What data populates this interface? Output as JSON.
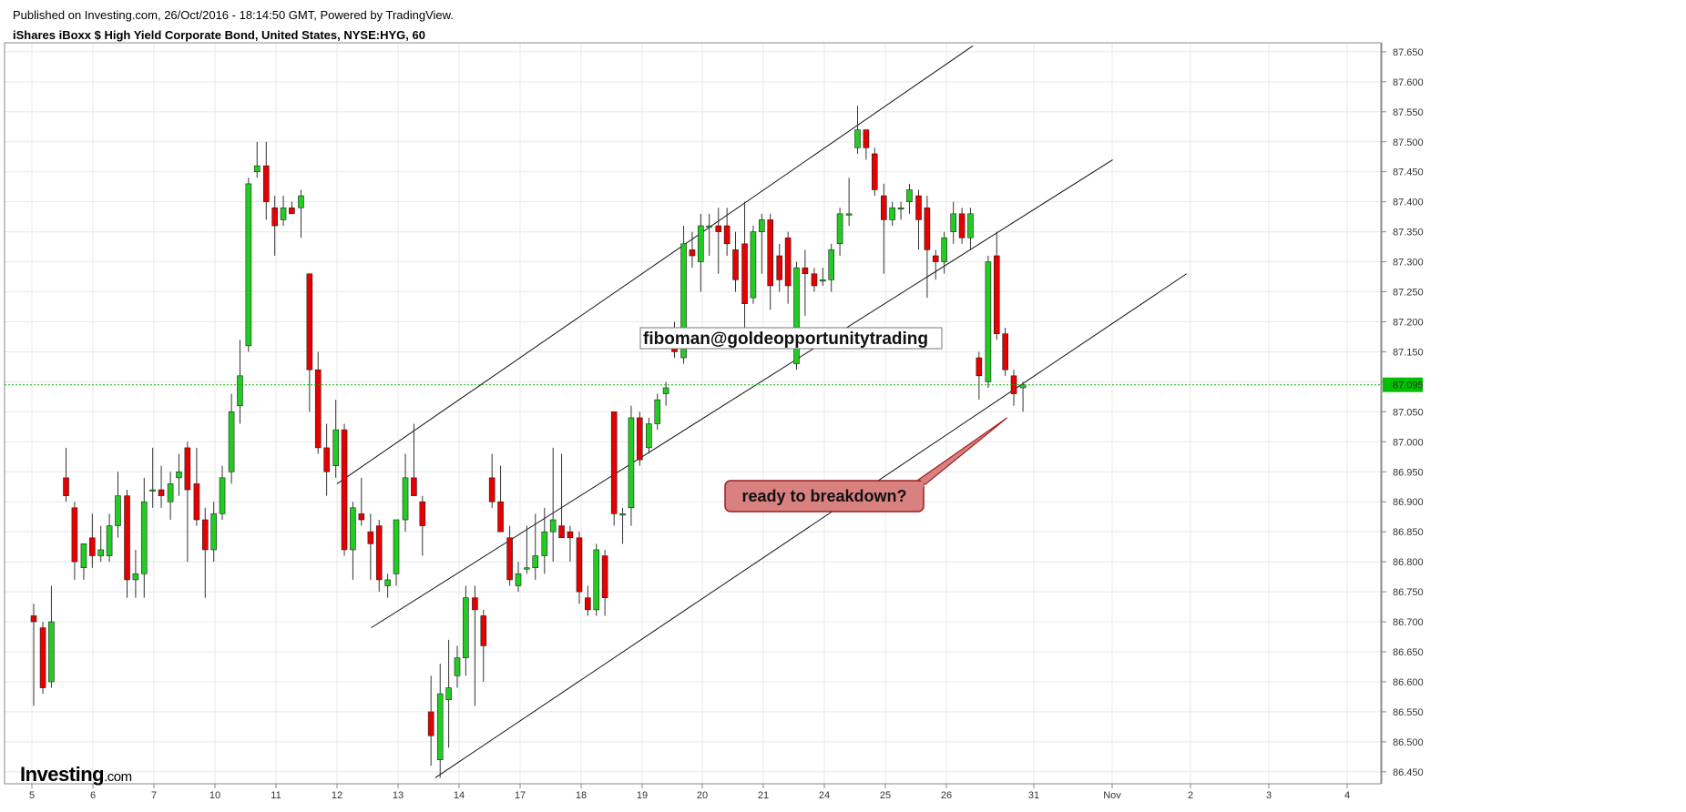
{
  "header": {
    "published": "Published on Investing.com, 26/Oct/2016 - 18:14:50 GMT, Powered by TradingView.",
    "symbol": "iShares iBoxx $ High Yield Corporate Bond, United States, NYSE:HYG, 60"
  },
  "logo": {
    "brand": "Investing",
    "suffix": ".com"
  },
  "colors": {
    "up": "#22cc22",
    "down": "#e60000",
    "grid": "#e8e8e8",
    "current_price_line": "#00bb00",
    "callout_fill": "#d98080",
    "callout_border": "#9a1f1f"
  },
  "chart_data": {
    "type": "candlestick",
    "interval": "60",
    "x_ticks": [
      "5",
      "6",
      "7",
      "10",
      "11",
      "12",
      "13",
      "14",
      "17",
      "18",
      "19",
      "20",
      "21",
      "24",
      "25",
      "26",
      "31",
      "Nov",
      "2",
      "3",
      "4"
    ],
    "y_ticks": [
      "87.650",
      "87.600",
      "87.550",
      "87.500",
      "87.450",
      "87.400",
      "87.350",
      "87.300",
      "87.250",
      "87.200",
      "87.150",
      "87.100",
      "87.050",
      "87.000",
      "86.950",
      "86.900",
      "86.850",
      "86.800",
      "86.750",
      "86.700",
      "86.650",
      "86.600",
      "86.550",
      "86.500",
      "86.450"
    ],
    "ylim": [
      86.43,
      87.665
    ],
    "current_price": "87.095",
    "candles": [
      {
        "x": 0.03,
        "o": 86.71,
        "h": 86.73,
        "l": 86.56,
        "c": 86.7
      },
      {
        "x": 0.18,
        "o": 86.69,
        "h": 86.7,
        "l": 86.58,
        "c": 86.59
      },
      {
        "x": 0.32,
        "o": 86.6,
        "h": 86.76,
        "l": 86.59,
        "c": 86.7
      },
      {
        "x": 0.56,
        "o": 86.94,
        "h": 86.99,
        "l": 86.9,
        "c": 86.91
      },
      {
        "x": 0.7,
        "o": 86.89,
        "h": 86.9,
        "l": 86.77,
        "c": 86.8
      },
      {
        "x": 0.85,
        "o": 86.79,
        "h": 86.83,
        "l": 86.77,
        "c": 86.83
      },
      {
        "x": 0.99,
        "o": 86.84,
        "h": 86.88,
        "l": 86.79,
        "c": 86.81
      },
      {
        "x": 1.13,
        "o": 86.81,
        "h": 86.86,
        "l": 86.8,
        "c": 86.82
      },
      {
        "x": 1.27,
        "o": 86.81,
        "h": 86.88,
        "l": 86.8,
        "c": 86.86
      },
      {
        "x": 1.41,
        "o": 86.86,
        "h": 86.95,
        "l": 86.84,
        "c": 86.91
      },
      {
        "x": 1.56,
        "o": 86.91,
        "h": 86.92,
        "l": 86.74,
        "c": 86.77
      },
      {
        "x": 1.7,
        "o": 86.77,
        "h": 86.82,
        "l": 86.74,
        "c": 86.78
      },
      {
        "x": 1.84,
        "o": 86.78,
        "h": 86.94,
        "l": 86.74,
        "c": 86.9
      },
      {
        "x": 1.98,
        "o": 86.92,
        "h": 86.99,
        "l": 86.89,
        "c": 86.92
      },
      {
        "x": 2.12,
        "o": 86.92,
        "h": 86.96,
        "l": 86.89,
        "c": 86.91
      },
      {
        "x": 2.27,
        "o": 86.9,
        "h": 86.95,
        "l": 86.87,
        "c": 86.93
      },
      {
        "x": 2.41,
        "o": 86.94,
        "h": 86.98,
        "l": 86.91,
        "c": 86.95
      },
      {
        "x": 2.55,
        "o": 86.99,
        "h": 87.0,
        "l": 86.8,
        "c": 86.92
      },
      {
        "x": 2.7,
        "o": 86.93,
        "h": 86.99,
        "l": 86.86,
        "c": 86.87
      },
      {
        "x": 2.84,
        "o": 86.87,
        "h": 86.89,
        "l": 86.74,
        "c": 86.82
      },
      {
        "x": 2.98,
        "o": 86.82,
        "h": 86.9,
        "l": 86.8,
        "c": 86.88
      },
      {
        "x": 3.12,
        "o": 86.88,
        "h": 86.96,
        "l": 86.87,
        "c": 86.94
      },
      {
        "x": 3.27,
        "o": 86.95,
        "h": 87.08,
        "l": 86.93,
        "c": 87.05
      },
      {
        "x": 3.41,
        "o": 87.06,
        "h": 87.17,
        "l": 87.03,
        "c": 87.11
      },
      {
        "x": 3.55,
        "o": 87.16,
        "h": 87.44,
        "l": 87.15,
        "c": 87.43
      },
      {
        "x": 3.69,
        "o": 87.45,
        "h": 87.5,
        "l": 87.44,
        "c": 87.46
      },
      {
        "x": 3.84,
        "o": 87.46,
        "h": 87.5,
        "l": 87.37,
        "c": 87.4
      },
      {
        "x": 3.98,
        "o": 87.39,
        "h": 87.41,
        "l": 87.31,
        "c": 87.36
      },
      {
        "x": 4.12,
        "o": 87.37,
        "h": 87.41,
        "l": 87.36,
        "c": 87.39
      },
      {
        "x": 4.26,
        "o": 87.39,
        "h": 87.4,
        "l": 87.38,
        "c": 87.38
      },
      {
        "x": 4.41,
        "o": 87.39,
        "h": 87.42,
        "l": 87.34,
        "c": 87.41
      },
      {
        "x": 4.55,
        "o": 87.28,
        "h": 87.28,
        "l": 87.05,
        "c": 87.12
      },
      {
        "x": 4.69,
        "o": 87.12,
        "h": 87.15,
        "l": 86.98,
        "c": 86.99
      },
      {
        "x": 4.83,
        "o": 86.99,
        "h": 87.03,
        "l": 86.91,
        "c": 86.95
      },
      {
        "x": 4.98,
        "o": 86.96,
        "h": 87.07,
        "l": 86.94,
        "c": 87.02
      },
      {
        "x": 5.12,
        "o": 87.02,
        "h": 87.03,
        "l": 86.81,
        "c": 86.82
      },
      {
        "x": 5.26,
        "o": 86.82,
        "h": 86.9,
        "l": 86.77,
        "c": 86.89
      },
      {
        "x": 5.4,
        "o": 86.88,
        "h": 86.94,
        "l": 86.86,
        "c": 86.87
      },
      {
        "x": 5.55,
        "o": 86.85,
        "h": 86.88,
        "l": 86.77,
        "c": 86.83
      },
      {
        "x": 5.69,
        "o": 86.86,
        "h": 86.87,
        "l": 86.75,
        "c": 86.77
      },
      {
        "x": 5.83,
        "o": 86.76,
        "h": 86.78,
        "l": 86.74,
        "c": 86.77
      },
      {
        "x": 5.97,
        "o": 86.78,
        "h": 86.87,
        "l": 86.76,
        "c": 86.87
      },
      {
        "x": 6.12,
        "o": 86.87,
        "h": 86.98,
        "l": 86.85,
        "c": 86.94
      },
      {
        "x": 6.26,
        "o": 86.94,
        "h": 87.03,
        "l": 86.92,
        "c": 86.91
      },
      {
        "x": 6.4,
        "o": 86.9,
        "h": 86.91,
        "l": 86.81,
        "c": 86.86
      },
      {
        "x": 6.54,
        "o": 86.55,
        "h": 86.61,
        "l": 86.46,
        "c": 86.51
      },
      {
        "x": 6.69,
        "o": 86.47,
        "h": 86.63,
        "l": 86.44,
        "c": 86.58
      },
      {
        "x": 6.83,
        "o": 86.57,
        "h": 86.67,
        "l": 86.49,
        "c": 86.59
      },
      {
        "x": 6.97,
        "o": 86.61,
        "h": 86.66,
        "l": 86.59,
        "c": 86.64
      },
      {
        "x": 7.11,
        "o": 86.64,
        "h": 86.76,
        "l": 86.61,
        "c": 86.74
      },
      {
        "x": 7.26,
        "o": 86.74,
        "h": 86.76,
        "l": 86.56,
        "c": 86.72
      },
      {
        "x": 7.4,
        "o": 86.71,
        "h": 86.72,
        "l": 86.6,
        "c": 86.66
      },
      {
        "x": 7.54,
        "o": 86.94,
        "h": 86.98,
        "l": 86.89,
        "c": 86.9
      },
      {
        "x": 7.68,
        "o": 86.9,
        "h": 86.96,
        "l": 86.85,
        "c": 86.85
      },
      {
        "x": 7.83,
        "o": 86.84,
        "h": 86.86,
        "l": 86.76,
        "c": 86.77
      },
      {
        "x": 7.97,
        "o": 86.76,
        "h": 86.8,
        "l": 86.75,
        "c": 86.78
      },
      {
        "x": 8.11,
        "o": 86.79,
        "h": 86.86,
        "l": 86.78,
        "c": 86.79
      },
      {
        "x": 8.25,
        "o": 86.79,
        "h": 86.88,
        "l": 86.77,
        "c": 86.81
      },
      {
        "x": 8.4,
        "o": 86.81,
        "h": 86.89,
        "l": 86.78,
        "c": 86.85
      },
      {
        "x": 8.54,
        "o": 86.85,
        "h": 86.99,
        "l": 86.8,
        "c": 86.87
      },
      {
        "x": 8.68,
        "o": 86.86,
        "h": 86.98,
        "l": 86.84,
        "c": 86.84
      },
      {
        "x": 8.82,
        "o": 86.85,
        "h": 86.86,
        "l": 86.8,
        "c": 86.84
      },
      {
        "x": 8.97,
        "o": 86.84,
        "h": 86.85,
        "l": 86.73,
        "c": 86.75
      },
      {
        "x": 9.11,
        "o": 86.74,
        "h": 86.76,
        "l": 86.71,
        "c": 86.72
      },
      {
        "x": 9.25,
        "o": 86.72,
        "h": 86.83,
        "l": 86.71,
        "c": 86.82
      },
      {
        "x": 9.39,
        "o": 86.81,
        "h": 86.82,
        "l": 86.71,
        "c": 86.74
      },
      {
        "x": 9.54,
        "o": 87.05,
        "h": 87.05,
        "l": 86.86,
        "c": 86.88
      },
      {
        "x": 9.68,
        "o": 86.88,
        "h": 86.89,
        "l": 86.83,
        "c": 86.88
      },
      {
        "x": 9.82,
        "o": 86.89,
        "h": 87.06,
        "l": 86.86,
        "c": 87.04
      },
      {
        "x": 9.96,
        "o": 87.04,
        "h": 87.05,
        "l": 86.96,
        "c": 86.97
      },
      {
        "x": 10.11,
        "o": 86.99,
        "h": 87.04,
        "l": 86.98,
        "c": 87.03
      },
      {
        "x": 10.25,
        "o": 87.03,
        "h": 87.08,
        "l": 87.02,
        "c": 87.07
      },
      {
        "x": 10.39,
        "o": 87.08,
        "h": 87.1,
        "l": 87.06,
        "c": 87.09
      },
      {
        "x": 10.53,
        "o": 87.17,
        "h": 87.2,
        "l": 87.14,
        "c": 87.15
      },
      {
        "x": 10.68,
        "o": 87.14,
        "h": 87.36,
        "l": 87.13,
        "c": 87.33
      },
      {
        "x": 10.82,
        "o": 87.32,
        "h": 87.35,
        "l": 87.29,
        "c": 87.31
      },
      {
        "x": 10.96,
        "o": 87.3,
        "h": 87.38,
        "l": 87.25,
        "c": 87.36
      },
      {
        "x": 11.1,
        "o": 87.36,
        "h": 87.38,
        "l": 87.31,
        "c": 87.36
      },
      {
        "x": 11.25,
        "o": 87.36,
        "h": 87.39,
        "l": 87.28,
        "c": 87.35
      },
      {
        "x": 11.39,
        "o": 87.36,
        "h": 87.39,
        "l": 87.31,
        "c": 87.33
      },
      {
        "x": 11.53,
        "o": 87.32,
        "h": 87.35,
        "l": 87.25,
        "c": 87.27
      },
      {
        "x": 11.68,
        "o": 87.33,
        "h": 87.4,
        "l": 87.18,
        "c": 87.23
      },
      {
        "x": 11.82,
        "o": 87.24,
        "h": 87.36,
        "l": 87.23,
        "c": 87.35
      },
      {
        "x": 11.96,
        "o": 87.35,
        "h": 87.38,
        "l": 87.28,
        "c": 87.37
      },
      {
        "x": 12.1,
        "o": 87.37,
        "h": 87.38,
        "l": 87.22,
        "c": 87.26
      },
      {
        "x": 12.25,
        "o": 87.31,
        "h": 87.33,
        "l": 87.25,
        "c": 87.27
      },
      {
        "x": 12.39,
        "o": 87.34,
        "h": 87.35,
        "l": 87.23,
        "c": 87.26
      },
      {
        "x": 12.53,
        "o": 87.13,
        "h": 87.3,
        "l": 87.12,
        "c": 87.29
      },
      {
        "x": 12.67,
        "o": 87.29,
        "h": 87.32,
        "l": 87.21,
        "c": 87.28
      },
      {
        "x": 12.82,
        "o": 87.28,
        "h": 87.29,
        "l": 87.25,
        "c": 87.26
      },
      {
        "x": 12.96,
        "o": 87.27,
        "h": 87.29,
        "l": 87.26,
        "c": 87.27
      },
      {
        "x": 13.1,
        "o": 87.27,
        "h": 87.33,
        "l": 87.25,
        "c": 87.32
      },
      {
        "x": 13.24,
        "o": 87.33,
        "h": 87.39,
        "l": 87.31,
        "c": 87.38
      },
      {
        "x": 13.39,
        "o": 87.38,
        "h": 87.44,
        "l": 87.36,
        "c": 87.38
      },
      {
        "x": 13.53,
        "o": 87.49,
        "h": 87.56,
        "l": 87.48,
        "c": 87.52
      },
      {
        "x": 13.67,
        "o": 87.52,
        "h": 87.52,
        "l": 87.47,
        "c": 87.49
      },
      {
        "x": 13.81,
        "o": 87.48,
        "h": 87.49,
        "l": 87.41,
        "c": 87.42
      },
      {
        "x": 13.96,
        "o": 87.41,
        "h": 87.43,
        "l": 87.28,
        "c": 87.37
      },
      {
        "x": 14.1,
        "o": 87.37,
        "h": 87.4,
        "l": 87.36,
        "c": 87.39
      },
      {
        "x": 14.24,
        "o": 87.39,
        "h": 87.4,
        "l": 87.37,
        "c": 87.39
      },
      {
        "x": 14.38,
        "o": 87.4,
        "h": 87.43,
        "l": 87.38,
        "c": 87.42
      },
      {
        "x": 14.53,
        "o": 87.41,
        "h": 87.42,
        "l": 87.32,
        "c": 87.37
      },
      {
        "x": 14.67,
        "o": 87.39,
        "h": 87.41,
        "l": 87.24,
        "c": 87.32
      },
      {
        "x": 14.81,
        "o": 87.31,
        "h": 87.32,
        "l": 87.27,
        "c": 87.3
      },
      {
        "x": 14.95,
        "o": 87.3,
        "h": 87.35,
        "l": 87.28,
        "c": 87.34
      },
      {
        "x": 15.1,
        "o": 87.35,
        "h": 87.4,
        "l": 87.33,
        "c": 87.38
      },
      {
        "x": 15.24,
        "o": 87.38,
        "h": 87.39,
        "l": 87.33,
        "c": 87.34
      },
      {
        "x": 15.38,
        "o": 87.34,
        "h": 87.39,
        "l": 87.32,
        "c": 87.38
      },
      {
        "x": 15.52,
        "o": 87.14,
        "h": 87.15,
        "l": 87.07,
        "c": 87.11
      },
      {
        "x": 15.67,
        "o": 87.1,
        "h": 87.31,
        "l": 87.09,
        "c": 87.3
      },
      {
        "x": 15.81,
        "o": 87.31,
        "h": 87.35,
        "l": 87.17,
        "c": 87.18
      },
      {
        "x": 15.95,
        "o": 87.18,
        "h": 87.19,
        "l": 87.11,
        "c": 87.12
      },
      {
        "x": 16.09,
        "o": 87.11,
        "h": 87.12,
        "l": 87.06,
        "c": 87.08
      },
      {
        "x": 16.24,
        "o": 87.09,
        "h": 87.1,
        "l": 87.05,
        "c": 87.095
      }
    ],
    "trendlines": [
      {
        "x1": 5.0,
        "y1": 86.93,
        "x2": 15.42,
        "y2": 87.66
      },
      {
        "x1": 5.56,
        "y1": 86.69,
        "x2": 17.71,
        "y2": 87.47
      },
      {
        "x1": 6.61,
        "y1": 86.44,
        "x2": 18.92,
        "y2": 87.28
      }
    ],
    "annotations": {
      "watermark_text": "fiboman@goldeopportunitytrading",
      "callout_text": "ready to breakdown?",
      "callout_target": {
        "x": 15.98,
        "y": 87.04
      }
    }
  }
}
